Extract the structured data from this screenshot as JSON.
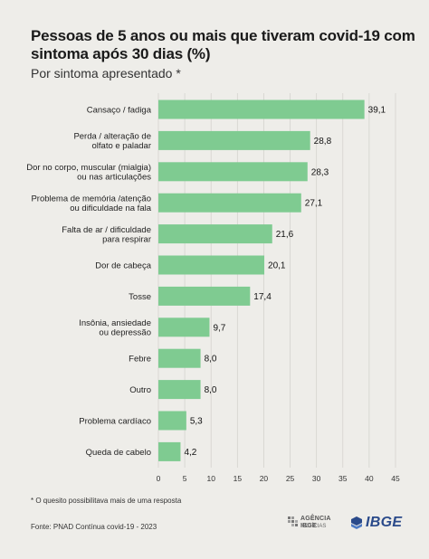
{
  "header": {
    "title": "Pessoas de 5 anos ou mais que tiveram covid-19 com sintoma após 30 dias (%)",
    "subtitle": "Por sintoma apresentado *"
  },
  "footer": {
    "note": "* O quesito possibilitava mais de uma resposta",
    "source": "Fonte: PNAD Contínua covid-19 - 2023",
    "agencia_title": "AGÊNCIA IBGE",
    "agencia_sub": "NOTÍCIAS",
    "ibge_logo": "IBGE"
  },
  "colors": {
    "bar": "#7fcb91",
    "background": "#eeede9",
    "gridline": "#d4d3ce"
  },
  "chart_data": {
    "type": "bar",
    "orientation": "horizontal",
    "categories": [
      [
        "Cansaço / fadiga"
      ],
      [
        "Perda / alteração de",
        "olfato e paladar"
      ],
      [
        "Dor no corpo, muscular (mialgia)",
        "ou nas articulações"
      ],
      [
        "Problema de memória /atenção",
        "ou dificuldade na fala"
      ],
      [
        "Falta de ar / dificuldade",
        "para respirar"
      ],
      [
        "Dor de cabeça"
      ],
      [
        "Tosse"
      ],
      [
        "Insônia, ansiedade",
        "ou depressão"
      ],
      [
        "Febre"
      ],
      [
        "Outro"
      ],
      [
        "Problema cardíaco"
      ],
      [
        "Queda de cabelo"
      ]
    ],
    "values": [
      39.1,
      28.8,
      28.3,
      27.1,
      21.6,
      20.1,
      17.4,
      9.7,
      8.0,
      8.0,
      5.3,
      4.2
    ],
    "value_labels": [
      "39,1",
      "28,8",
      "28,3",
      "27,1",
      "21,6",
      "20,1",
      "17,4",
      "9,7",
      "8,0",
      "8,0",
      "5,3",
      "4,2"
    ],
    "xlim": [
      0,
      45
    ],
    "xticks": [
      0,
      5,
      10,
      15,
      20,
      25,
      30,
      35,
      40,
      45
    ],
    "grid": true
  }
}
